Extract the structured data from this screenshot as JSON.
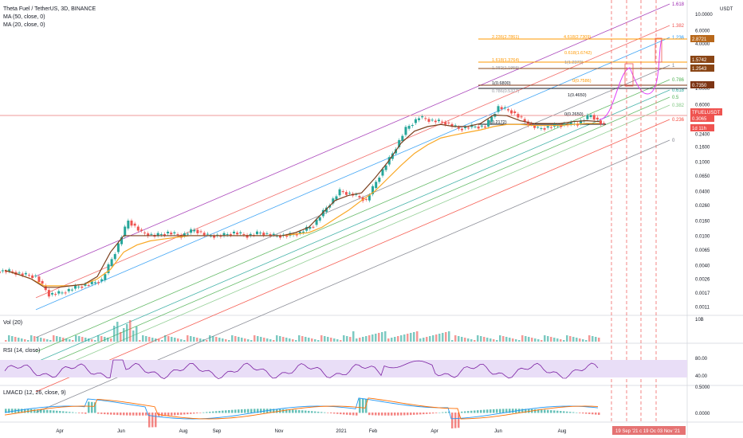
{
  "header": {
    "symbol_line": "Theta Fuel / TetherUS, 3D, BINANCE",
    "ma50": "MA (50, close, 0)",
    "ma20": "MA (20, close, 0)"
  },
  "price_scale": {
    "unit": "USDT",
    "ticks": [
      "10.0000",
      "6.0000",
      "4.0000",
      "2.4000",
      "1.0000",
      "0.6000",
      "0.4000",
      "0.2400",
      "0.1600",
      "0.1000",
      "0.0650",
      "0.0400",
      "0.0260",
      "0.0160",
      "0.0100",
      "0.0065",
      "0.0040",
      "0.0026",
      "0.0017",
      "0.0011"
    ]
  },
  "price_badges": [
    {
      "label": "2.8721",
      "color": "#b8681b"
    },
    {
      "label": "1.5742",
      "color": "#8a4515"
    },
    {
      "label": "1.2543",
      "color": "#8a4515"
    },
    {
      "label": "0.7350",
      "color": "#7d3414"
    },
    {
      "label": "TFUELUSDT",
      "color": "#ef5350"
    },
    {
      "label": "0.3065",
      "color": "#ef5350"
    },
    {
      "label": "1d 11h",
      "color": "#ef5350"
    }
  ],
  "time_axis": {
    "labels": [
      "Apr",
      "Jun",
      "Aug",
      "Sep",
      "Nov",
      "2021",
      "Feb",
      "Apr",
      "Jun",
      "Aug"
    ],
    "highlight": "19 Sep '21   c   19 Oc   03 Nov '21"
  },
  "fib_channel_levels": [
    "1.618",
    "1.382",
    "1.236",
    "1",
    "0.786",
    "0.618",
    "0.5",
    "0.382",
    "0.236",
    "0"
  ],
  "fib_extension_labels": [
    {
      "text": "2.236(2.7861)",
      "color": "#ff9800"
    },
    {
      "text": "4.618(2.7309)",
      "color": "#ff9800"
    },
    {
      "text": "1.618(1.3764)",
      "color": "#ff9800"
    },
    {
      "text": "0.618(1.6742)",
      "color": "#ff9800"
    },
    {
      "text": "1.382(1.1959)",
      "color": "#9598a1"
    },
    {
      "text": "1(1.2373)",
      "color": "#9598a1"
    },
    {
      "text": "1(0.6800)",
      "color": "#131722"
    },
    {
      "text": "0(0.7586)",
      "color": "#ff9800"
    },
    {
      "text": "0.786(0.5327)",
      "color": "#9598a1"
    },
    {
      "text": "1(0.4650)",
      "color": "#131722"
    },
    {
      "text": "0(0.2172)",
      "color": "#131722"
    },
    {
      "text": "0(0.2650)",
      "color": "#131722"
    }
  ],
  "panels": {
    "volume": {
      "title": "Vol (20)",
      "tick": "10B"
    },
    "rsi": {
      "title": "RSI (14, close)",
      "ticks": [
        "80.00",
        "40.00"
      ],
      "color": "#7b1fa2"
    },
    "macd": {
      "title": "LMACD (12, 26, close, 9)",
      "ticks": [
        "0.5000",
        "0.0000"
      ],
      "macd_color": "#2196f3",
      "signal_color": "#ff6d00"
    }
  },
  "colors": {
    "up": "#26a69a",
    "down": "#ef5350",
    "ma50": "#f9a825",
    "ma20": "#7b3f1d",
    "fib_ext": "#ff9800",
    "projection": "#e040fb",
    "rsi_band": "#e9def7"
  },
  "chart_data": {
    "type": "candlestick",
    "scale": "log",
    "price_range": [
      0.0011,
      10
    ],
    "series": [
      {
        "name": "close_approx",
        "values": [
          0.0033,
          0.003,
          0.0028,
          0.0016,
          0.0017,
          0.002,
          0.0022,
          0.0025,
          0.006,
          0.016,
          0.011,
          0.01,
          0.011,
          0.01,
          0.012,
          0.01,
          0.01,
          0.011,
          0.01,
          0.011,
          0.01,
          0.01,
          0.011,
          0.014,
          0.024,
          0.04,
          0.036,
          0.03,
          0.065,
          0.13,
          0.28,
          0.4,
          0.36,
          0.34,
          0.28,
          0.3,
          0.3,
          0.55,
          0.48,
          0.35,
          0.28,
          0.3,
          0.32,
          0.33,
          0.43,
          0.3065
        ]
      },
      {
        "name": "MA (20, close, 0)",
        "values": [
          0.0034,
          0.003,
          0.0026,
          0.002,
          0.002,
          0.0021,
          0.0022,
          0.0028,
          0.006,
          0.01,
          0.01,
          0.01,
          0.01,
          0.01,
          0.01,
          0.01,
          0.01,
          0.01,
          0.01,
          0.01,
          0.01,
          0.01,
          0.011,
          0.013,
          0.02,
          0.03,
          0.035,
          0.038,
          0.06,
          0.1,
          0.18,
          0.26,
          0.3,
          0.32,
          0.3,
          0.3,
          0.33,
          0.43,
          0.42,
          0.36,
          0.33,
          0.33,
          0.33,
          0.35,
          0.36,
          0.35
        ]
      },
      {
        "name": "MA (50, close, 0)",
        "values": [
          0.0034,
          0.003,
          0.0026,
          0.0021,
          0.0021,
          0.0021,
          0.0022,
          0.0026,
          0.0035,
          0.006,
          0.0075,
          0.0085,
          0.009,
          0.0095,
          0.01,
          0.01,
          0.01,
          0.01,
          0.01,
          0.01,
          0.01,
          0.01,
          0.0105,
          0.011,
          0.013,
          0.017,
          0.022,
          0.03,
          0.04,
          0.06,
          0.09,
          0.13,
          0.17,
          0.21,
          0.23,
          0.25,
          0.27,
          0.3,
          0.32,
          0.32,
          0.31,
          0.31,
          0.31,
          0.32,
          0.33,
          0.33
        ]
      }
    ]
  }
}
